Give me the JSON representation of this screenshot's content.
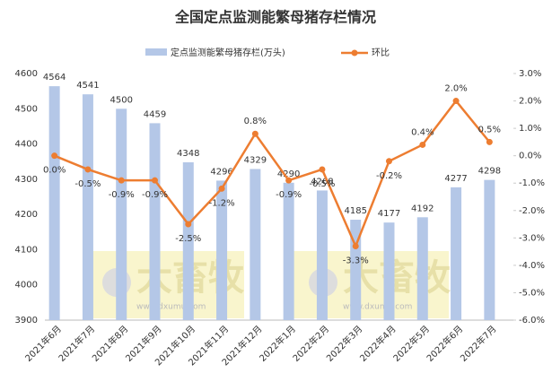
{
  "chart_data": {
    "type": "bar-line",
    "title": "全国定点监测能繁母猪存栏情况",
    "categories": [
      "2021年6月",
      "2021年7月",
      "2021年8月",
      "2021年9月",
      "2021年10月",
      "2021年11月",
      "2021年12月",
      "2022年1月",
      "2022年2月",
      "2022年3月",
      "2022年4月",
      "2022年5月",
      "2022年6月",
      "2022年7月"
    ],
    "series": [
      {
        "name": "定点监测能繁母猪存栏(万头)",
        "type": "bar",
        "color": "#b4c7e7",
        "values": [
          4564,
          4541,
          4500,
          4459,
          4348,
          4296,
          4329,
          4290,
          4268,
          4185,
          4177,
          4192,
          4277,
          4298
        ]
      },
      {
        "name": "环比",
        "type": "line",
        "axis": "y2",
        "color": "#ed7d31",
        "values": [
          0.0,
          -0.5,
          -0.9,
          -0.9,
          -2.5,
          -1.2,
          0.8,
          -0.9,
          -0.5,
          -3.3,
          -0.2,
          0.4,
          2.0,
          0.5
        ],
        "value_labels": [
          "0.0%",
          "-0.5%",
          "-0.9%",
          "-0.9%",
          "-2.5%",
          "-1.2%",
          "0.8%",
          "-0.9%",
          "-0.5%",
          "-3.3%",
          "-0.2%",
          "0.4%",
          "2.0%",
          "0.5%"
        ]
      }
    ],
    "ylim": [
      3900,
      4600
    ],
    "yticks": [
      3900,
      4000,
      4100,
      4200,
      4300,
      4400,
      4500,
      4600
    ],
    "y2lim": [
      -6,
      3
    ],
    "y2ticks": [
      {
        "value": -6,
        "label": "-6.0%"
      },
      {
        "value": -5,
        "label": "-5.0%"
      },
      {
        "value": -4,
        "label": "-4.0%"
      },
      {
        "value": -3,
        "label": "-3.0%"
      },
      {
        "value": -2,
        "label": "-2.0%"
      },
      {
        "value": -1,
        "label": "-1.0%"
      },
      {
        "value": 0,
        "label": "0.0%"
      },
      {
        "value": 1,
        "label": "1.0%"
      },
      {
        "value": 2,
        "label": "2.0%"
      },
      {
        "value": 3,
        "label": "3.0%"
      }
    ],
    "legend": "top",
    "watermark": {
      "text": "大畜牧",
      "url": "www.dxumu.com"
    }
  }
}
